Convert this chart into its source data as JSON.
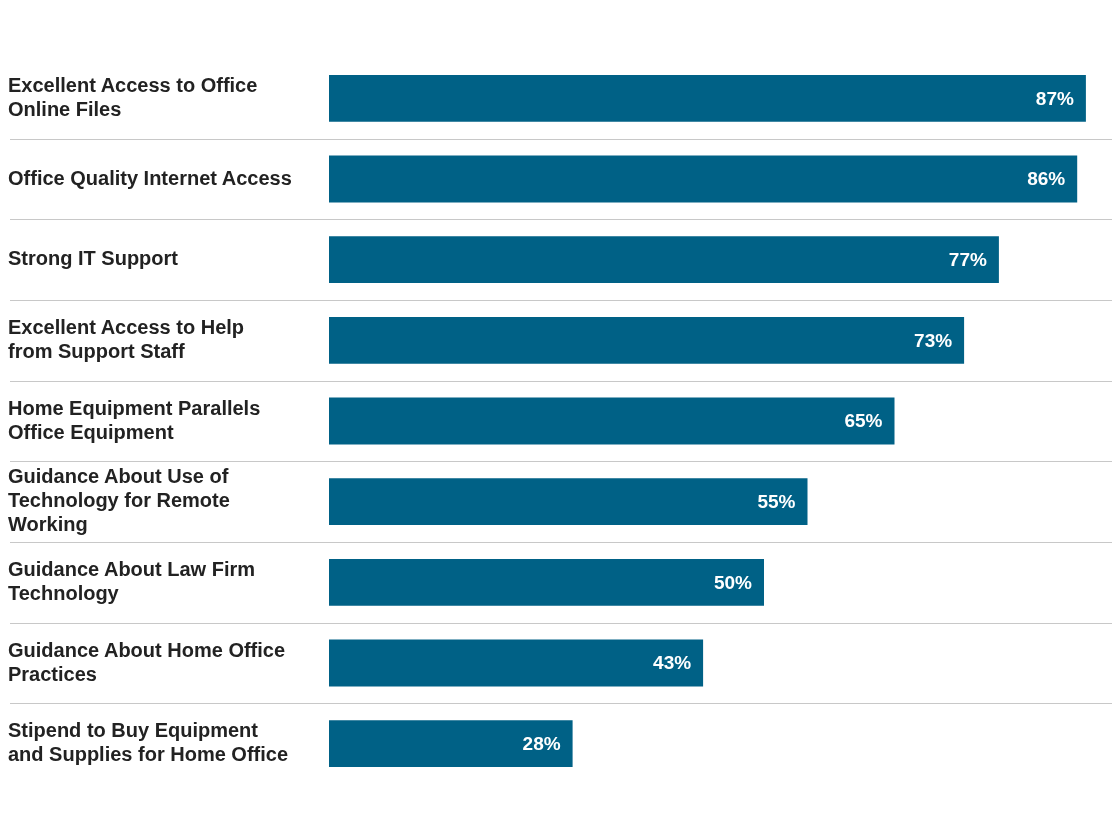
{
  "chart_data": {
    "type": "bar",
    "orientation": "horizontal",
    "categories": [
      "Excellent Access to Office Online Files",
      "Office Quality Internet Access",
      "Strong IT Support",
      "Excellent Access to Help from Support Staff",
      "Home Equipment Parallels Office Equipment",
      "Guidance About Use of Technology for Remote Working",
      "Guidance About Law Firm Technology",
      "Guidance About Home Office Practices",
      "Stipend to Buy Equipment and Supplies for Home Office"
    ],
    "values": [
      87,
      86,
      77,
      73,
      65,
      55,
      50,
      43,
      28
    ],
    "value_labels": [
      "87%",
      "86%",
      "77%",
      "73%",
      "65%",
      "55%",
      "50%",
      "43%",
      "28%"
    ],
    "color": "#006186",
    "grid": "y",
    "legend": false
  }
}
